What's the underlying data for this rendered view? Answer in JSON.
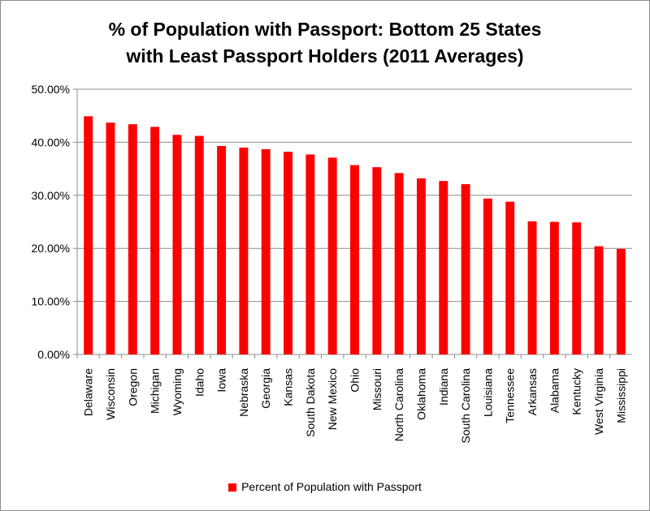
{
  "chart_data": {
    "type": "bar",
    "title": "% of Population with Passport: Bottom 25 States with Least Passport Holders (2011 Averages)",
    "title_lines": [
      "% of Population with Passport: Bottom 25 States",
      "with Least Passport Holders (2011 Averages)"
    ],
    "categories": [
      "Delaware",
      "Wisconsin",
      "Oregon",
      "Michigan",
      "Wyoming",
      "Idaho",
      "Iowa",
      "Nebraska",
      "Georgia",
      "Kansas",
      "South Dakota",
      "New Mexico",
      "Ohio",
      "Missouri",
      "North Carolina",
      "Oklahoma",
      "Indiana",
      "South Carolina",
      "Louisiana",
      "Tennessee",
      "Arkansas",
      "Alabama",
      "Kentucky",
      "West Virginia",
      "Mississippi"
    ],
    "series": [
      {
        "name": "Percent of Population with Passport",
        "color": "#ff0000",
        "values": [
          44.9,
          43.7,
          43.4,
          42.9,
          41.4,
          41.2,
          39.3,
          39.0,
          38.7,
          38.2,
          37.7,
          37.1,
          35.7,
          35.3,
          34.2,
          33.2,
          32.7,
          32.1,
          29.4,
          28.8,
          25.1,
          25.0,
          24.9,
          20.4,
          19.9
        ]
      }
    ],
    "yticks": [
      "0.00%",
      "10.00%",
      "20.00%",
      "30.00%",
      "40.00%",
      "50.00%"
    ],
    "ylim": [
      0,
      50
    ],
    "grid": true,
    "legend": "bottom"
  }
}
